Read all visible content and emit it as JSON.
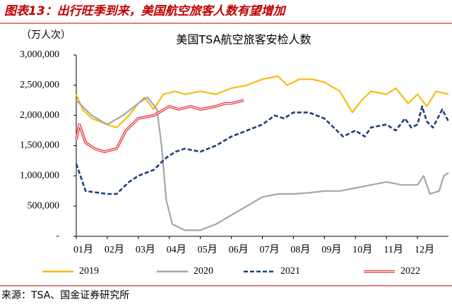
{
  "figure_title": "图表13：出行旺季到来，美国航空旅客人数有望增加",
  "source": "来源：TSA、国金证券研究所",
  "chart_data": {
    "type": "line",
    "title": "美国TSA航空旅客安检人数",
    "y_unit_label": "（万人次）",
    "xlim": [
      0,
      12
    ],
    "xticks": [
      {
        "value": 0,
        "label": "01月"
      },
      {
        "value": 1,
        "label": "02月"
      },
      {
        "value": 2,
        "label": "03月"
      },
      {
        "value": 3,
        "label": "04月"
      },
      {
        "value": 4,
        "label": "05月"
      },
      {
        "value": 5,
        "label": "06月"
      },
      {
        "value": 6,
        "label": "07月"
      },
      {
        "value": 7,
        "label": "08月"
      },
      {
        "value": 8,
        "label": "09月"
      },
      {
        "value": 9,
        "label": "10月"
      },
      {
        "value": 10,
        "label": "11月"
      },
      {
        "value": 11,
        "label": "12月"
      }
    ],
    "ylim": [
      0,
      3000000
    ],
    "yticks": [
      {
        "value": 0,
        "label": "-"
      },
      {
        "value": 500000,
        "label": "500,000"
      },
      {
        "value": 1000000,
        "label": "1,000,000"
      },
      {
        "value": 1500000,
        "label": "1,500,000"
      },
      {
        "value": 2000000,
        "label": "2,000,000"
      },
      {
        "value": 2500000,
        "label": "2,500,000"
      },
      {
        "value": 3000000,
        "label": "3,000,000"
      }
    ],
    "legend": "bottom",
    "series": [
      {
        "name": "2019",
        "color": "#f5bd0f",
        "style": "solid",
        "x": [
          0,
          0.2,
          0.5,
          1.0,
          1.3,
          1.7,
          2.0,
          2.2,
          2.5,
          2.8,
          3.2,
          3.5,
          4.0,
          4.5,
          5.0,
          5.5,
          6.0,
          6.5,
          6.8,
          7.2,
          7.6,
          8.0,
          8.5,
          8.9,
          9.2,
          9.5,
          10.0,
          10.3,
          10.7,
          11.0,
          11.3,
          11.6,
          12.0
        ],
        "values": [
          2350000,
          2100000,
          1950000,
          1850000,
          1800000,
          2000000,
          2200000,
          2300000,
          2100000,
          2350000,
          2400000,
          2350000,
          2400000,
          2350000,
          2450000,
          2500000,
          2600000,
          2650000,
          2500000,
          2600000,
          2600000,
          2550000,
          2400000,
          2050000,
          2250000,
          2400000,
          2350000,
          2450000,
          2200000,
          2350000,
          2150000,
          2400000,
          2350000
        ]
      },
      {
        "name": "2020",
        "color": "#a6a6a6",
        "style": "solid",
        "x": [
          0,
          0.1,
          0.5,
          1.0,
          1.5,
          2.0,
          2.3,
          2.6,
          2.75,
          2.9,
          3.1,
          3.5,
          4.0,
          4.5,
          5.0,
          5.5,
          6.0,
          6.5,
          7.0,
          7.5,
          8.0,
          8.5,
          9.0,
          9.5,
          10.0,
          10.5,
          11.0,
          11.2,
          11.4,
          11.7,
          11.85,
          12.0
        ],
        "values": [
          2250000,
          2200000,
          2000000,
          1850000,
          2000000,
          2200000,
          2300000,
          2100000,
          1500000,
          600000,
          200000,
          100000,
          100000,
          200000,
          350000,
          500000,
          650000,
          700000,
          700000,
          720000,
          750000,
          750000,
          800000,
          850000,
          900000,
          850000,
          850000,
          1000000,
          700000,
          750000,
          1000000,
          1050000
        ]
      },
      {
        "name": "2021",
        "color": "#1f3f7a",
        "style": "dashed",
        "x": [
          0,
          0.3,
          1.0,
          1.3,
          1.7,
          2.0,
          2.5,
          2.9,
          3.2,
          3.5,
          4.0,
          4.5,
          5.0,
          5.5,
          6.0,
          6.4,
          6.7,
          7.0,
          7.5,
          8.0,
          8.3,
          8.6,
          9.0,
          9.3,
          9.5,
          10.0,
          10.3,
          10.6,
          10.8,
          11.0,
          11.15,
          11.3,
          11.5,
          11.8,
          12.0
        ],
        "values": [
          1200000,
          750000,
          700000,
          700000,
          900000,
          1000000,
          1100000,
          1300000,
          1400000,
          1450000,
          1400000,
          1500000,
          1650000,
          1750000,
          1850000,
          2000000,
          1950000,
          2050000,
          2050000,
          1950000,
          1800000,
          1650000,
          1750000,
          1650000,
          1800000,
          1850000,
          1750000,
          1950000,
          1800000,
          1850000,
          2150000,
          1900000,
          1800000,
          2100000,
          1900000
        ]
      },
      {
        "name": "2022",
        "color": "#e8262b",
        "style": "double",
        "x": [
          0,
          0.1,
          0.3,
          0.6,
          0.9,
          1.3,
          1.6,
          2.0,
          2.5,
          3.0,
          3.3,
          3.7,
          4.0,
          4.5,
          4.8,
          5.0,
          5.4
        ],
        "values": [
          1600000,
          1850000,
          1550000,
          1450000,
          1400000,
          1450000,
          1750000,
          1950000,
          2000000,
          2150000,
          2100000,
          2150000,
          2100000,
          2150000,
          2200000,
          2200000,
          2250000
        ]
      }
    ]
  }
}
